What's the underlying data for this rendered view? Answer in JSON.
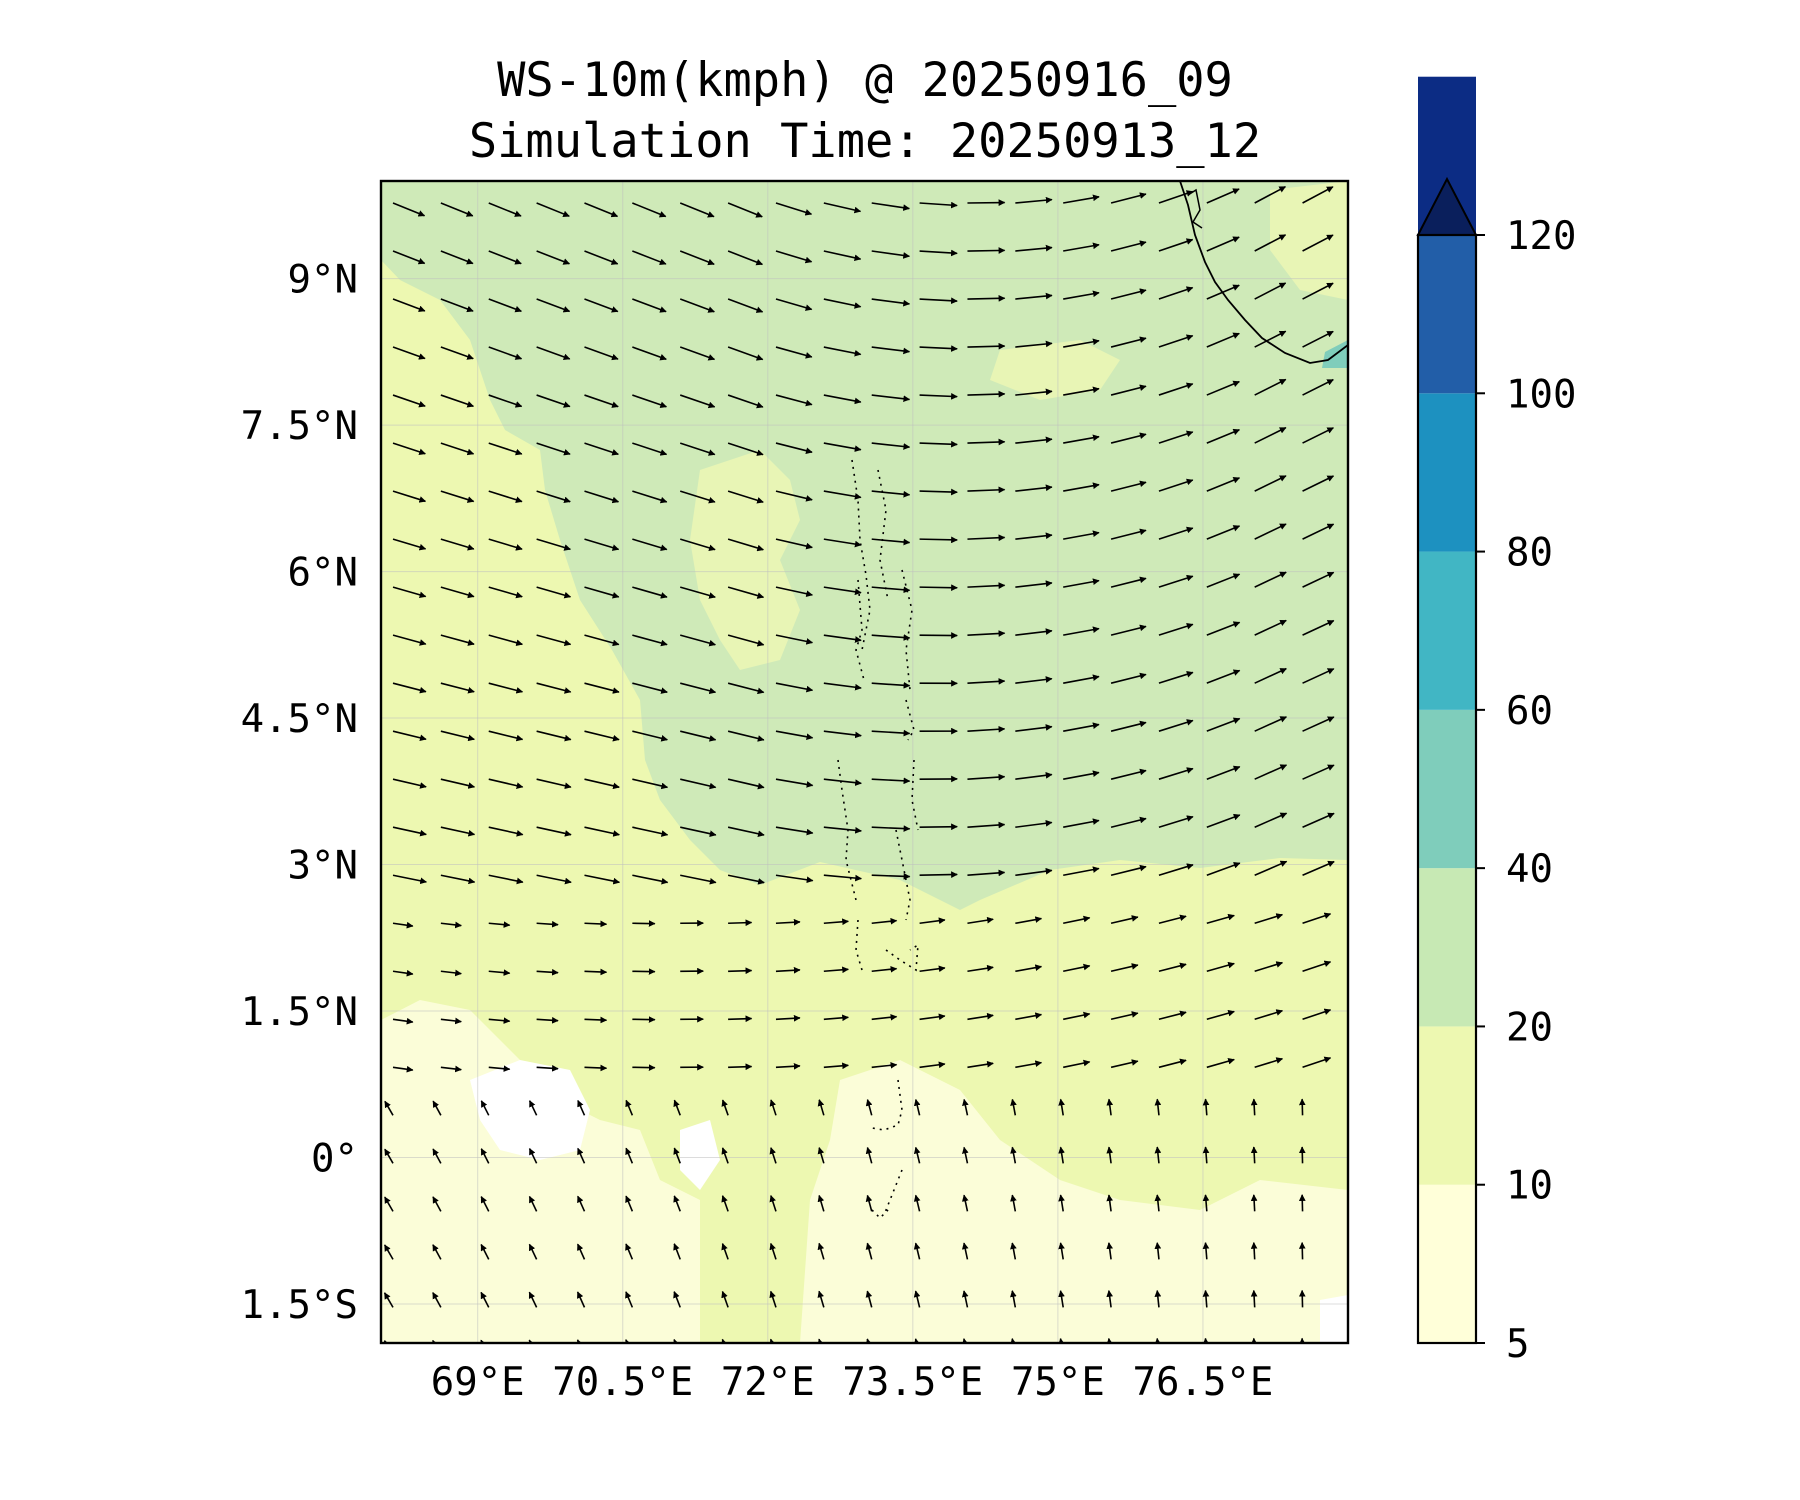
{
  "title": {
    "line1": "WS-10m(kmph) @ 20250916_09",
    "line2": "Simulation Time: 20250913_12"
  },
  "map": {
    "variable": "WS-10m",
    "units": "kmph",
    "valid_time": "20250916_09",
    "simulation_time": "20250913_12",
    "lat_ticks": [
      "9°N",
      "7.5°N",
      "6°N",
      "4.5°N",
      "3°N",
      "1.5°N",
      "0°",
      "1.5°S"
    ],
    "lon_ticks": [
      "69°E",
      "70.5°E",
      "72°E",
      "73.5°E",
      "75°E",
      "76.5°E"
    ],
    "lon_range": [
      68,
      78
    ],
    "lat_range": [
      -1.9,
      10
    ],
    "gridlines": true,
    "features": [
      "India southwest coastline",
      "Maldives atolls"
    ],
    "wind_field": "wind vectors: WNW/NW winds north of 2°N turning westerly near 73°E and WSW/SW east of 74°E; weak SE/S winds south of 1°N",
    "speed_regions": [
      {
        "band": "20-40",
        "area": "central-north and east, north of ~2.5°N"
      },
      {
        "band": "10-20",
        "area": "most of domain"
      },
      {
        "band": "5-10",
        "area": "south-west near equator and far south-east"
      },
      {
        "band": "40-60",
        "area": "small patch near Sri Lanka/India tip"
      }
    ]
  },
  "colorbar": {
    "levels": [
      5,
      10,
      20,
      40,
      60,
      80,
      100,
      120
    ],
    "labels": [
      "5",
      "10",
      "20",
      "40",
      "60",
      "80",
      "100",
      "120"
    ],
    "colors": [
      "#ffffd9",
      "#edf8b1",
      "#c7e9b4",
      "#7fcdbb",
      "#41b6c4",
      "#1d91c0",
      "#225ea8",
      "#0c2c84"
    ],
    "extend": "max",
    "extend_color": "#0a1f5c",
    "orientation": "vertical",
    "placement": "right"
  }
}
